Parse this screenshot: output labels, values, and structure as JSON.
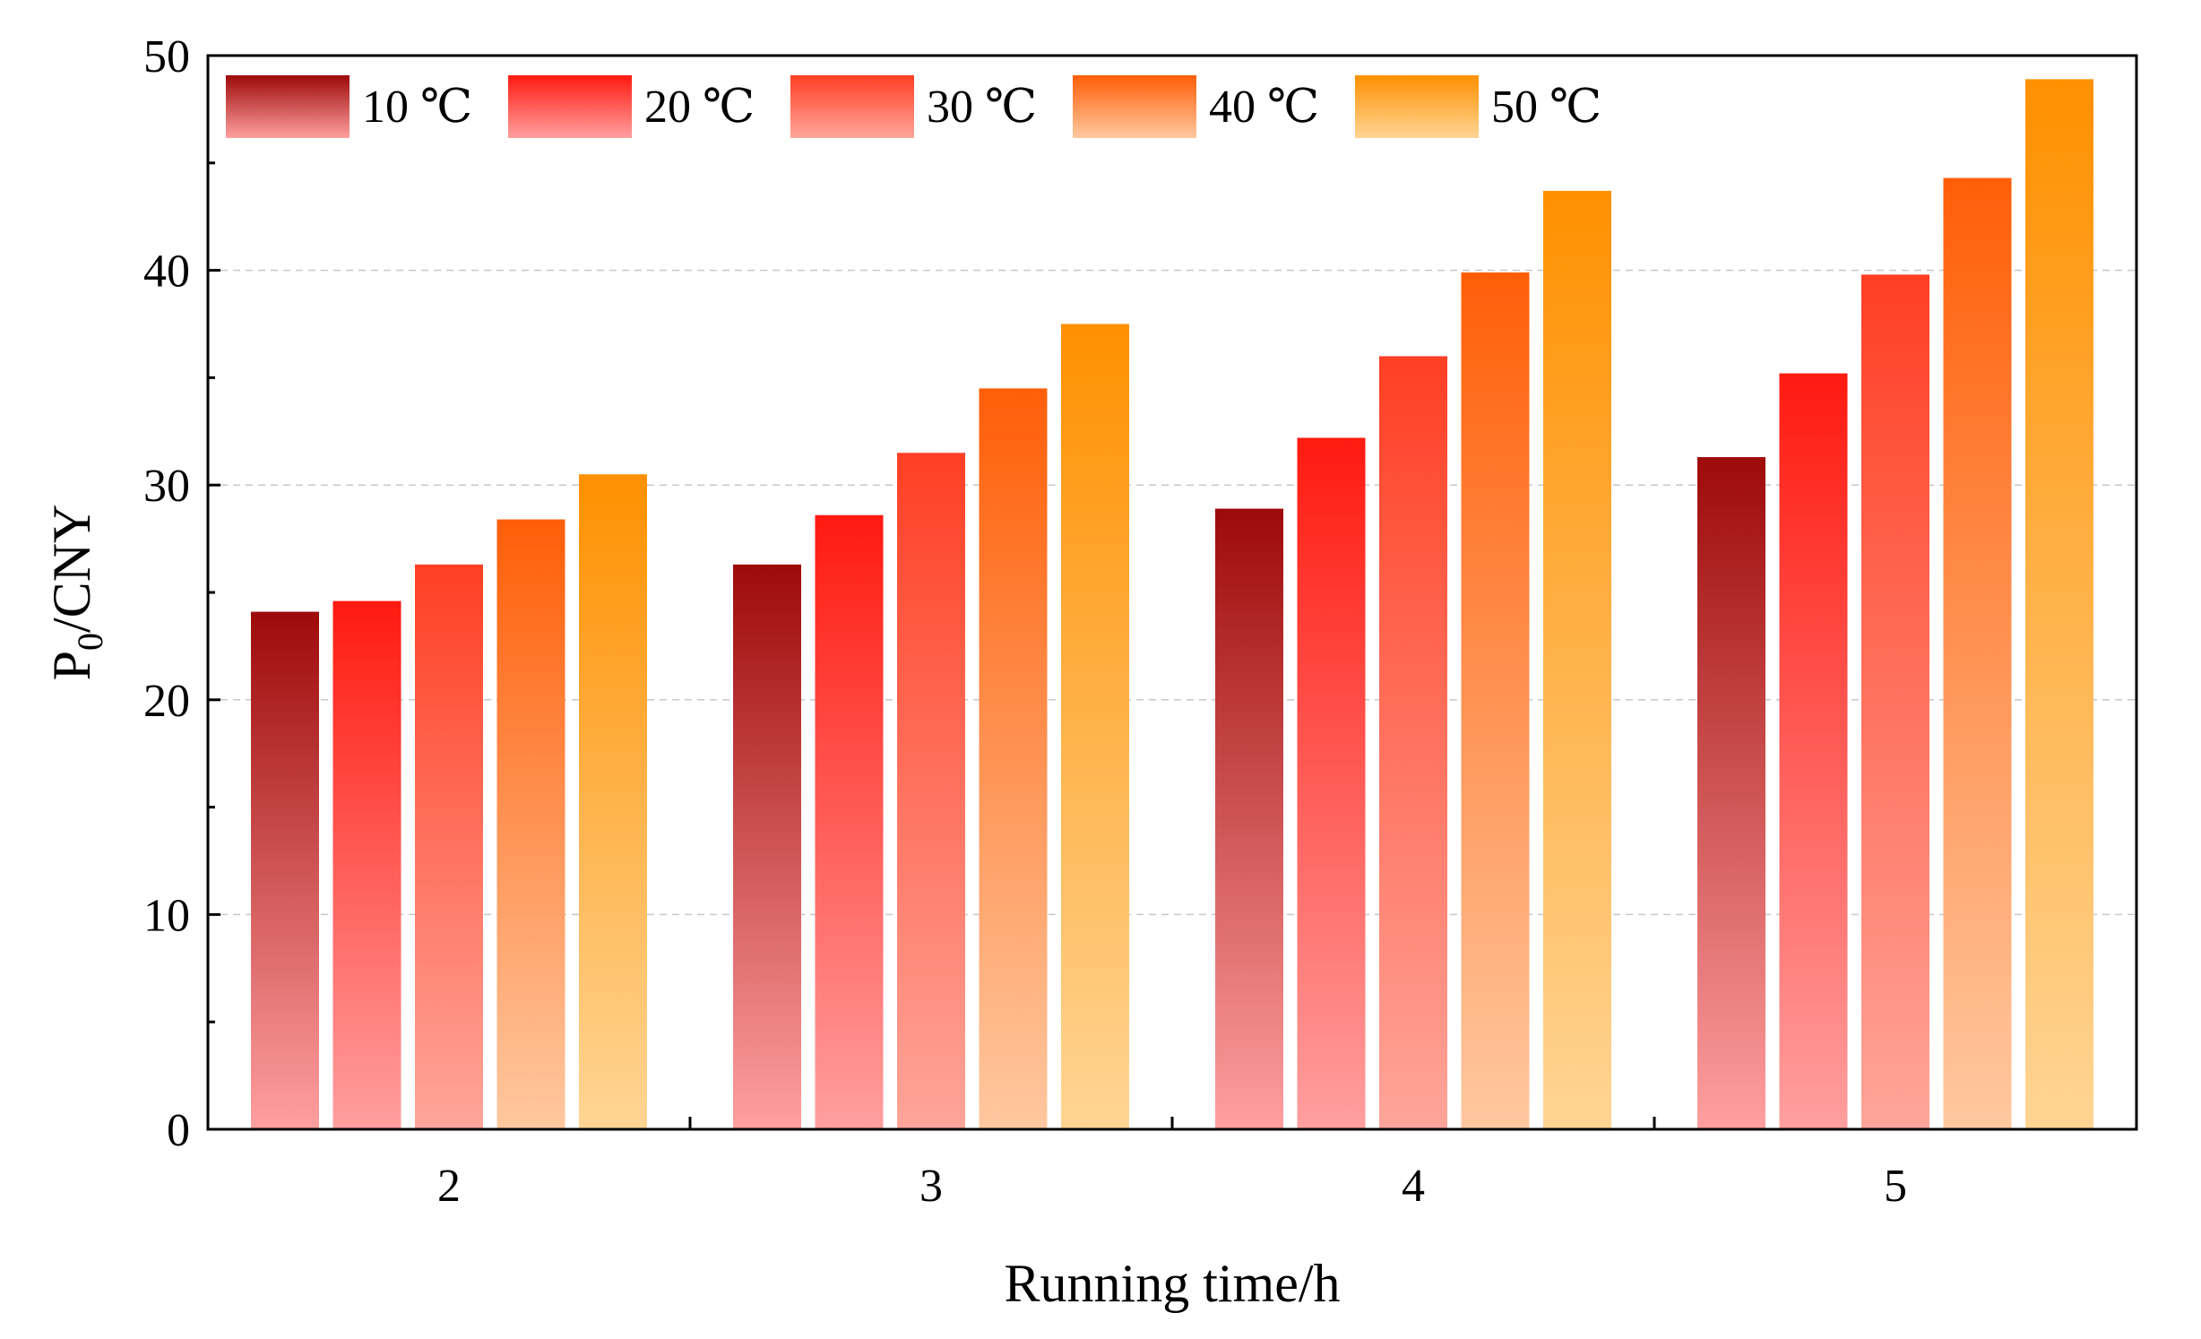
{
  "chart_data": {
    "type": "bar",
    "title": "",
    "xlabel": "Running time/h",
    "ylabel_main": "P",
    "ylabel_sub": "0",
    "ylabel_suffix": "/CNY",
    "categories": [
      "2",
      "3",
      "4",
      "5"
    ],
    "ylim": [
      0,
      50
    ],
    "yticks": [
      "0",
      "10",
      "20",
      "30",
      "40",
      "50"
    ],
    "grid": true,
    "legend_position": "top-left",
    "series": [
      {
        "name": "10 ℃",
        "values": [
          24.1,
          26.3,
          28.9,
          31.3
        ],
        "color_top": "#9e0a0a",
        "color_bottom": "#ff9f9f"
      },
      {
        "name": "20 ℃",
        "values": [
          24.6,
          28.6,
          32.2,
          35.2
        ],
        "color_top": "#ff1a10",
        "color_bottom": "#ff9f9f"
      },
      {
        "name": "30 ℃",
        "values": [
          26.3,
          31.5,
          36.0,
          39.8
        ],
        "color_top": "#ff3f24",
        "color_bottom": "#ffa59a"
      },
      {
        "name": "40 ℃",
        "values": [
          28.4,
          34.5,
          39.9,
          44.3
        ],
        "color_top": "#ff5e08",
        "color_bottom": "#ffc8a0"
      },
      {
        "name": "50 ℃",
        "values": [
          30.5,
          37.5,
          43.7,
          48.9
        ],
        "color_top": "#ff9000",
        "color_bottom": "#ffd594"
      }
    ]
  }
}
